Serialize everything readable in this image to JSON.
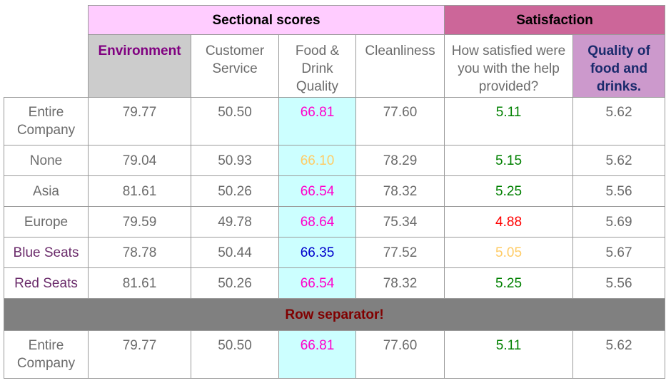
{
  "header": {
    "group_sectional": "Sectional scores",
    "group_satisfaction": "Satisfaction",
    "columns": [
      "Environment",
      "Customer Service",
      "Food & Drink Quality",
      "Cleanliness",
      "How satisfied were you with the help provided?",
      "Quality of food and drinks."
    ]
  },
  "rows": [
    {
      "label": "Entire Company",
      "env": "79.77",
      "cs": "50.50",
      "food": "66.81",
      "clean": "77.60",
      "help": "5.11",
      "quality": "5.62"
    },
    {
      "label": "None",
      "env": "79.04",
      "cs": "50.93",
      "food": "66.10",
      "clean": "78.29",
      "help": "5.15",
      "quality": "5.62"
    },
    {
      "label": "Asia",
      "env": "81.61",
      "cs": "50.26",
      "food": "66.54",
      "clean": "78.32",
      "help": "5.25",
      "quality": "5.56"
    },
    {
      "label": "Europe",
      "env": "79.59",
      "cs": "49.78",
      "food": "68.64",
      "clean": "75.34",
      "help": "4.88",
      "quality": "5.69"
    },
    {
      "label": "Blue Seats",
      "env": "78.78",
      "cs": "50.44",
      "food": "66.35",
      "clean": "77.52",
      "help": "5.05",
      "quality": "5.67"
    },
    {
      "label": "Red Seats",
      "env": "81.61",
      "cs": "50.26",
      "food": "66.54",
      "clean": "78.32",
      "help": "5.25",
      "quality": "5.56"
    }
  ],
  "separator": "Row separator!",
  "rows_after": [
    {
      "label": "Entire Company",
      "env": "79.77",
      "cs": "50.50",
      "food": "66.81",
      "clean": "77.60",
      "help": "5.11",
      "quality": "5.62"
    }
  ],
  "colors": {
    "sectional_header_bg": "#ffccff",
    "satisfaction_header_bg": "#cc6699",
    "environment_header_bg": "#cccccc",
    "quality_header_bg": "#cc99cc",
    "food_column_bg": "#ccffff",
    "separator_bg": "#808080",
    "separator_text": "#800000",
    "good": "#008000",
    "warning": "#ffcc66",
    "bad": "#ff0000",
    "highlight_magenta": "#ff00cc",
    "highlight_blue": "#0000cc"
  }
}
